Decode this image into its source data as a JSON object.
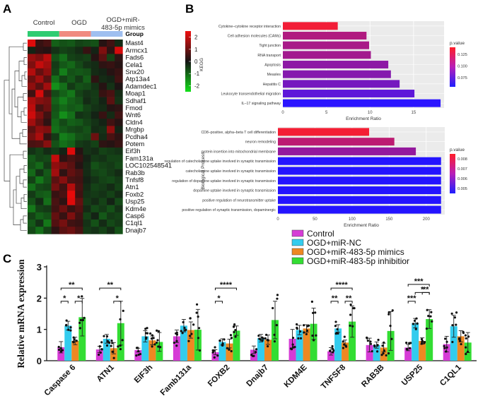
{
  "panels": {
    "a": "A",
    "b": "B",
    "c": "C"
  },
  "colors": {
    "control": "#cc3dcc",
    "ogd": "#f08080",
    "mimic_header": "#9fb9ee",
    "green": "#2ecc52",
    "cyan": "#2ed0f0",
    "orange": "#ee8a1c",
    "bright_green": "#22dd22"
  },
  "chart_data": [
    {
      "type": "heatmap",
      "group_labels": [
        "Control",
        "OGD",
        "OGD+miR-483-5p mimics"
      ],
      "group_header": "Group",
      "group_colors": [
        "#2ecc71",
        "#f08a80",
        "#9fbff0"
      ],
      "colorbar_ticks": [
        "2",
        "1",
        "0",
        "-1",
        "-2"
      ],
      "vmin": -2.5,
      "vmax": 2.5,
      "genes": [
        "Mast4",
        "Armcx1",
        "Fads6",
        "Cela1",
        "Snx20",
        "Atp13a4",
        "Adamdec1",
        "Moap1",
        "Sdhaf1",
        "Fmod",
        "Wnt6",
        "Cldn4",
        "Mrgbp",
        "Pcdha4",
        "Potem",
        "Eif3h",
        "Fam131a",
        "LOC102548541",
        "Rab3b",
        "Tnfsf8",
        "Atn1",
        "Foxb2",
        "Usp25",
        "Kdm4e",
        "Casp6",
        "C1ql1",
        "Dnajb7"
      ],
      "values": [
        [
          2.3,
          0.4,
          0.6,
          -1.0,
          -0.8,
          -0.9,
          -0.6,
          -0.7,
          -0.8,
          0.2,
          0.5,
          -0.3
        ],
        [
          -0.2,
          0.3,
          0.2,
          -0.4,
          -0.6,
          -0.5,
          -0.3,
          0.4,
          -0.2,
          1.2,
          0.3,
          2.2
        ],
        [
          1.5,
          1.2,
          1.9,
          -0.8,
          -1.2,
          -0.6,
          -0.5,
          -0.6,
          0.2,
          0.8,
          -0.6,
          0.3
        ],
        [
          1.2,
          2.0,
          1.6,
          -0.5,
          -0.9,
          -1.1,
          -0.7,
          -0.4,
          -0.3,
          0.3,
          0.4,
          0.2
        ],
        [
          1.8,
          0.9,
          1.4,
          -0.6,
          -1.4,
          -0.8,
          -0.9,
          -0.8,
          -0.3,
          -0.2,
          0.2,
          0.4
        ],
        [
          1.0,
          1.6,
          0.8,
          -1.2,
          -0.6,
          -0.9,
          -0.5,
          -1.0,
          0.3,
          -0.3,
          -0.2,
          0.5
        ],
        [
          1.4,
          0.8,
          1.6,
          -1.6,
          -1.2,
          -0.5,
          -0.8,
          -0.7,
          -0.4,
          0.2,
          -0.4,
          0.1
        ],
        [
          0.5,
          2.2,
          0.6,
          -0.7,
          -1.0,
          -1.3,
          -0.6,
          -0.4,
          -0.5,
          0.4,
          0.6,
          -0.3
        ],
        [
          1.7,
          1.3,
          1.1,
          -1.0,
          -1.4,
          -1.0,
          -0.8,
          -0.3,
          -0.5,
          -0.2,
          0.8,
          -0.4
        ],
        [
          1.9,
          0.6,
          1.0,
          -0.8,
          -1.1,
          -0.9,
          -1.0,
          -0.6,
          -0.4,
          -0.3,
          0.2,
          0.3
        ],
        [
          2.1,
          1.2,
          0.5,
          -0.9,
          -1.6,
          -1.2,
          -0.4,
          -0.5,
          -0.2,
          0.4,
          -0.3,
          0.5
        ],
        [
          1.6,
          0.9,
          0.3,
          -1.1,
          -0.7,
          -1.0,
          -0.9,
          -0.6,
          -0.4,
          -0.2,
          0.5,
          0.2
        ],
        [
          0.8,
          1.4,
          1.2,
          -1.2,
          -0.9,
          -0.7,
          -0.6,
          -0.8,
          -0.3,
          -0.4,
          1.4,
          -0.2
        ],
        [
          1.1,
          1.7,
          0.4,
          -0.5,
          -1.4,
          -1.2,
          -0.8,
          -0.7,
          1.0,
          -0.3,
          0.6,
          0.3
        ],
        [
          0.6,
          0.7,
          1.3,
          -0.8,
          -1.2,
          -1.0,
          -0.5,
          -0.4,
          -0.6,
          0.3,
          0.2,
          0.4
        ],
        [
          -0.4,
          -0.6,
          -0.3,
          -0.5,
          -0.2,
          2.3,
          0.2,
          -0.4,
          -0.3,
          -0.6,
          -0.5,
          -0.4
        ],
        [
          -0.9,
          -0.6,
          -0.7,
          2.0,
          0.3,
          0.6,
          0.4,
          -0.2,
          -0.5,
          -0.4,
          -0.6,
          -0.6
        ],
        [
          -0.8,
          -1.1,
          -0.5,
          1.4,
          1.1,
          0.8,
          0.2,
          -0.3,
          -0.8,
          -0.6,
          -0.5,
          -0.7
        ],
        [
          -1.1,
          -0.4,
          -0.9,
          1.6,
          0.3,
          0.9,
          0.6,
          -0.3,
          -0.6,
          -0.7,
          -0.5,
          -0.3
        ],
        [
          -0.6,
          -1.3,
          -0.8,
          0.8,
          1.3,
          0.6,
          0.5,
          -0.2,
          -0.4,
          -0.6,
          -0.7,
          -0.5
        ],
        [
          -1.2,
          -0.7,
          -0.6,
          1.1,
          0.5,
          1.8,
          0.6,
          -0.3,
          -0.6,
          -0.5,
          -0.3,
          -0.6
        ],
        [
          -0.5,
          -0.9,
          -1.0,
          0.4,
          0.6,
          2.4,
          0.5,
          -0.4,
          -0.5,
          -0.4,
          -0.6,
          -0.3
        ],
        [
          -0.8,
          -0.3,
          -1.2,
          0.6,
          0.3,
          2.3,
          0.9,
          -0.5,
          -0.3,
          -0.6,
          -0.2,
          -0.7
        ],
        [
          -1.3,
          -0.6,
          -0.5,
          0.5,
          1.0,
          0.4,
          0.7,
          -0.3,
          -0.7,
          -0.5,
          -0.8,
          -0.4
        ],
        [
          -0.6,
          -1.0,
          -0.8,
          0.9,
          0.4,
          1.2,
          0.5,
          -0.6,
          -0.2,
          -0.9,
          -0.5,
          -0.6
        ],
        [
          -0.9,
          -0.4,
          -1.3,
          0.7,
          1.1,
          0.5,
          0.4,
          -0.4,
          -0.8,
          -0.3,
          -0.7,
          -0.5
        ],
        [
          -0.7,
          -1.2,
          -0.6,
          0.3,
          0.8,
          1.0,
          0.6,
          -0.5,
          -0.4,
          -0.6,
          -0.3,
          -0.8
        ]
      ]
    },
    {
      "type": "bar",
      "orientation": "horizontal",
      "ylabel": "KEGG",
      "xlabel": "Enrichment Ratio",
      "categories": [
        "Cytokine–cytokine receptor interaction",
        "Cell adhesion molecules (CAMs)",
        "Tight junction",
        "RNA transport",
        "Apoptosis",
        "Measles",
        "Hepatitis C",
        "Leukocyte transendothelial migration",
        "IL–17 signaling pathway"
      ],
      "values": [
        6.3,
        9.6,
        9.9,
        10.1,
        12.1,
        12.4,
        13.4,
        15.1,
        18.1
      ],
      "p_values": [
        0.135,
        0.11,
        0.107,
        0.105,
        0.097,
        0.094,
        0.088,
        0.079,
        0.06
      ],
      "xlim": [
        0,
        18.5
      ],
      "xticks": [
        0,
        5,
        10,
        15
      ],
      "legend_title": "p.value",
      "legend_ticks": [
        "0.125",
        "0.100",
        "0.075"
      ],
      "color_range": [
        0.055,
        0.14
      ]
    },
    {
      "type": "bar",
      "orientation": "horizontal",
      "ylabel": "Biological Process",
      "xlabel": "Enrichment Ratio",
      "categories": [
        "CD8–positive, alpha–beta T cell differentiation",
        "neuron remodeling",
        "protein insertion into mitochondrial membrane",
        "regulation of catecholamine uptake involved in synaptic transmission",
        "catecholamine uptake involved in synaptic transmission",
        "regulation of dopamine uptake involved in synaptic transmission",
        "dopamine uptake involved in synaptic transmission",
        "positive regulation of neurotransmitter uptake",
        "positive regulation of synaptic transmission, dopaminergic"
      ],
      "values": [
        123,
        157,
        186,
        220,
        220,
        220,
        220,
        220,
        220
      ],
      "p_values": [
        0.0083,
        0.0073,
        0.0066,
        0.0046,
        0.0046,
        0.0046,
        0.0046,
        0.0046,
        0.0046
      ],
      "xlim": [
        0,
        225
      ],
      "xticks": [
        0,
        50,
        100,
        150,
        200
      ],
      "legend_title": "p.value",
      "legend_ticks": [
        "0.008",
        "0.007",
        "0.006",
        "0.005"
      ],
      "color_range": [
        0.0045,
        0.0085
      ]
    },
    {
      "type": "bar",
      "title": "",
      "ylabel": "Relative mRNA expression",
      "xlabel": "",
      "ylim": [
        0,
        3
      ],
      "yticks": [
        0,
        1,
        2,
        3
      ],
      "categories": [
        "Caspase 6",
        "ATN1",
        "EIF3h",
        "Famb131a",
        "FOXB2",
        "Dnajb7",
        "KDM4E",
        "TNFSF8",
        "RAB3B",
        "USP25",
        "C1QL1"
      ],
      "series": [
        {
          "name": "Control",
          "color": "#d63cd6",
          "values": [
            0.43,
            0.36,
            0.34,
            0.78,
            0.27,
            0.35,
            0.7,
            0.3,
            0.5,
            0.42,
            0.53
          ],
          "errors": [
            0.18,
            0.1,
            0.06,
            0.2,
            0.08,
            0.12,
            0.3,
            0.12,
            0.22,
            0.1,
            0.25
          ]
        },
        {
          "name": "OGD+miR-NC",
          "color": "#33ccee",
          "values": [
            1.12,
            0.7,
            0.78,
            1.12,
            0.6,
            0.72,
            0.98,
            1.03,
            0.5,
            1.2,
            1.1
          ],
          "errors": [
            0.14,
            0.14,
            0.18,
            0.2,
            0.1,
            0.12,
            0.15,
            0.12,
            0.1,
            0.15,
            0.35
          ]
        },
        {
          "name": "OGD+miR-483-5p mimics",
          "color": "#ee8822",
          "values": [
            0.63,
            0.4,
            0.65,
            0.98,
            0.55,
            0.67,
            1.03,
            0.58,
            0.42,
            0.63,
            0.78
          ],
          "errors": [
            0.12,
            0.18,
            0.14,
            0.26,
            0.14,
            0.15,
            0.12,
            0.08,
            0.14,
            0.1,
            0.18
          ]
        },
        {
          "name": "OGD+miR-483-5p inhibitior",
          "color": "#33dd33",
          "values": [
            1.39,
            1.2,
            0.6,
            0.99,
            0.96,
            1.3,
            1.18,
            1.25,
            0.95,
            1.33,
            0.58
          ],
          "errors": [
            0.6,
            0.7,
            0.3,
            0.65,
            0.15,
            0.6,
            0.5,
            0.5,
            0.62,
            0.3,
            0.32
          ]
        }
      ],
      "significance": [
        {
          "category": 0,
          "from": 0,
          "to": 3,
          "label": "**",
          "y": 2.32
        },
        {
          "category": 0,
          "from": 0,
          "to": 1,
          "label": "*",
          "y": 1.9
        },
        {
          "category": 0,
          "from": 2,
          "to": 3,
          "label": "*",
          "y": 1.9
        },
        {
          "category": 1,
          "from": 0,
          "to": 3,
          "label": "**",
          "y": 2.32
        },
        {
          "category": 1,
          "from": 2,
          "to": 3,
          "label": "*",
          "y": 1.9
        },
        {
          "category": 4,
          "from": 0,
          "to": 3,
          "label": "****",
          "y": 2.32
        },
        {
          "category": 4,
          "from": 0,
          "to": 1,
          "label": "*",
          "y": 1.9
        },
        {
          "category": 7,
          "from": 0,
          "to": 3,
          "label": "****",
          "y": 2.32
        },
        {
          "category": 7,
          "from": 0,
          "to": 1,
          "label": "**",
          "y": 1.9
        },
        {
          "category": 7,
          "from": 2,
          "to": 3,
          "label": "**",
          "y": 1.9
        },
        {
          "category": 9,
          "from": 0,
          "to": 3,
          "label": "***",
          "y": 2.44
        },
        {
          "category": 9,
          "from": 1,
          "to": 3,
          "label": "*",
          "y": 2.18
        },
        {
          "category": 9,
          "from": 2,
          "to": 3,
          "label": "**",
          "y": 2.18
        },
        {
          "category": 9,
          "from": 0,
          "to": 1,
          "label": "***",
          "y": 1.9
        }
      ]
    }
  ]
}
